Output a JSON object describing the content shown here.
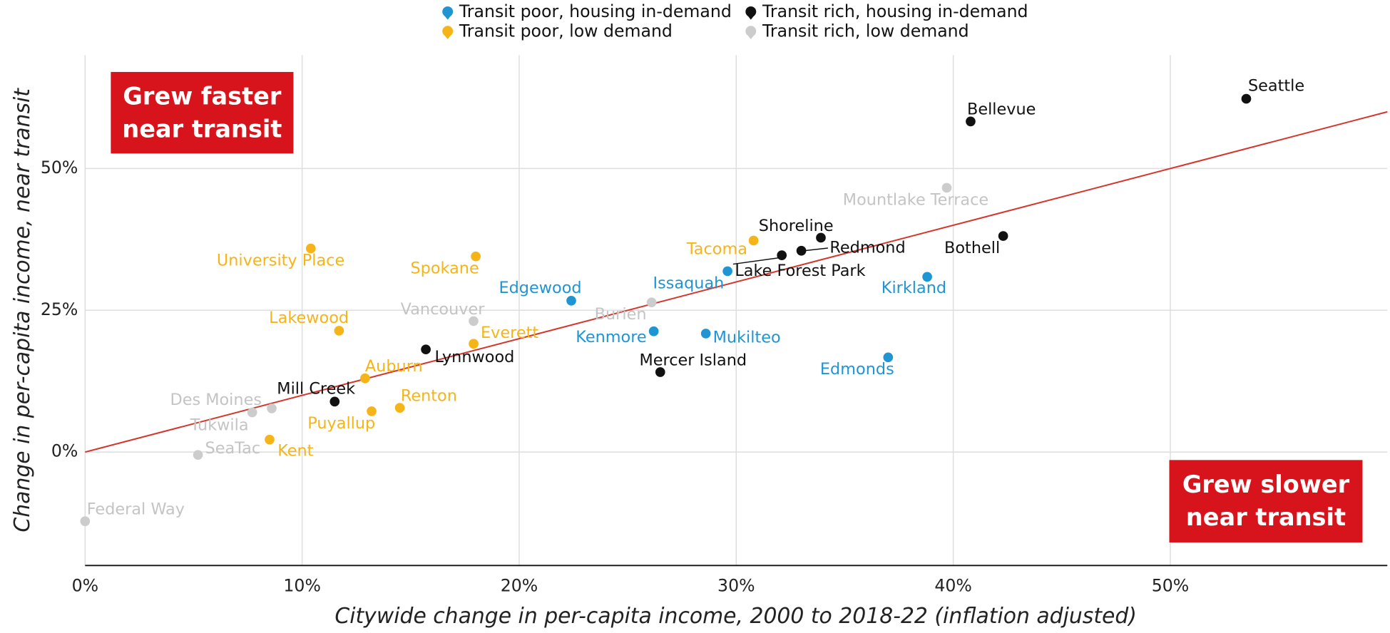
{
  "chart_data": {
    "type": "scatter",
    "x_label": "Citywide change in per-capita income, 2000 to 2018-22 (inflation adjusted)",
    "y_label": "Change in per-capita income, near transit",
    "annotations": [
      [
        "Grew faster",
        "near transit"
      ],
      [
        "Grew slower",
        "near transit"
      ]
    ],
    "xlim": [
      0,
      60
    ],
    "ylim": [
      -20,
      70
    ],
    "xticks": [
      {
        "value": 0,
        "label": "0%"
      },
      {
        "value": 10,
        "label": "10%"
      },
      {
        "value": 20,
        "label": "20%"
      },
      {
        "value": 30,
        "label": "30%"
      },
      {
        "value": 40,
        "label": "40%"
      },
      {
        "value": 50,
        "label": "50%"
      }
    ],
    "yticks": [
      {
        "value": 0,
        "label": "0%"
      },
      {
        "value": 25,
        "label": "25%"
      },
      {
        "value": 50,
        "label": "50%"
      }
    ],
    "grid": true,
    "reference_line": {
      "color": "#d6352b",
      "x": [
        0,
        60
      ],
      "y": [
        0,
        60
      ]
    },
    "series": [
      {
        "name": "Transit poor, housing in-demand",
        "color": "#1f95d4",
        "labels": [
          "Issaquah",
          "Kirkland",
          "Edgewood",
          "Kenmore",
          "Mukilteo",
          "Edmonds"
        ],
        "x": [
          29.6,
          38.8,
          22.4,
          26.2,
          28.6,
          37.0
        ],
        "values": [
          31.9,
          30.9,
          26.7,
          21.3,
          20.9,
          16.7
        ]
      },
      {
        "name": "Transit rich, housing in-demand",
        "color": "#111111",
        "labels": [
          "Seattle",
          "Bellevue",
          "Bothell",
          "Shoreline",
          "Redmond",
          "Lake Forest Park",
          "Mercer Island",
          "Lynnwood",
          "Mill Creek"
        ],
        "x": [
          53.5,
          40.8,
          42.3,
          33.9,
          33.0,
          32.1,
          26.5,
          15.7,
          11.5
        ],
        "values": [
          62.3,
          58.3,
          38.1,
          37.8,
          35.5,
          34.7,
          14.1,
          18.1,
          8.9
        ]
      },
      {
        "name": "Transit poor, low demand",
        "color": "#f5b417",
        "labels": [
          "Tacoma",
          "University Place",
          "Spokane",
          "Lakewood",
          "Everett",
          "Auburn",
          "Renton",
          "Puyallup",
          "Kent"
        ],
        "x": [
          30.8,
          10.4,
          18.0,
          11.7,
          17.9,
          12.9,
          14.5,
          13.2,
          8.5
        ],
        "values": [
          37.3,
          35.9,
          34.5,
          21.4,
          19.1,
          13.0,
          7.8,
          7.2,
          2.2
        ]
      },
      {
        "name": "Transit rich, low demand",
        "color": "#cccccc",
        "labels": [
          "Mountlake Terrace",
          "Burien",
          "Vancouver",
          "Des Moines",
          "Tukwila",
          "SeaTac",
          "Federal Way"
        ],
        "x": [
          39.7,
          26.1,
          17.9,
          8.6,
          7.7,
          5.2,
          0.0
        ],
        "values": [
          46.6,
          26.4,
          23.1,
          7.7,
          7.0,
          -0.5,
          -12.2
        ]
      }
    ]
  }
}
